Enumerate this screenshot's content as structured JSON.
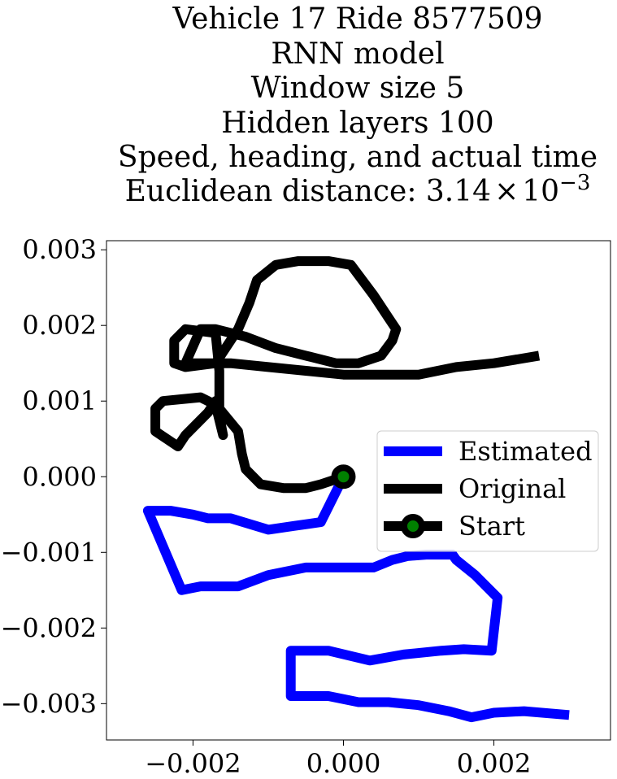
{
  "chart_data": {
    "type": "line",
    "title_lines": [
      "Vehicle 17 Ride 8577509",
      "RNN model",
      "Window size 5",
      "Hidden layers 100",
      "Speed, heading, and actual time"
    ],
    "title_distance": {
      "prefix": "Euclidean distance: 3.14",
      "times": "×",
      "base": "10",
      "exponent": "−3"
    },
    "xlim": [
      -0.00315,
      0.00355
    ],
    "ylim": [
      -0.00348,
      0.00312
    ],
    "x_ticks": [
      {
        "value": -0.002,
        "label": "−0.002"
      },
      {
        "value": 0.0,
        "label": "0.000"
      },
      {
        "value": 0.002,
        "label": "0.002"
      }
    ],
    "y_ticks": [
      {
        "value": 0.003,
        "label": "0.003"
      },
      {
        "value": 0.002,
        "label": "0.002"
      },
      {
        "value": 0.001,
        "label": "0.001"
      },
      {
        "value": 0.0,
        "label": "0.000"
      },
      {
        "value": -0.001,
        "label": "−0.001"
      },
      {
        "value": -0.002,
        "label": "−0.002"
      },
      {
        "value": -0.003,
        "label": "−0.003"
      }
    ],
    "grid": false,
    "legend_position": "center-right",
    "series": [
      {
        "name": "Estimated",
        "color": "#0000ff",
        "x": [
          0.0,
          -0.0003,
          -0.00065,
          -0.001,
          -0.0015,
          -0.0018,
          -0.002,
          -0.0023,
          -0.0026,
          -0.00215,
          -0.0019,
          -0.0014,
          -0.001,
          -0.0005,
          -0.0002,
          0.0004,
          0.00065,
          0.00085,
          0.0011,
          0.00145,
          0.0015,
          0.00175,
          0.00205,
          0.00197,
          0.0016,
          0.0013,
          0.0008,
          0.00035,
          -0.0002,
          -0.0007,
          -0.0007,
          -0.0004,
          -0.0002,
          0.0002,
          0.0006,
          0.001,
          0.0014,
          0.0017,
          0.002,
          0.0024,
          0.003
        ],
        "y": [
          0.0,
          -0.0006,
          -0.00065,
          -0.0007,
          -0.00055,
          -0.00055,
          -0.0005,
          -0.00045,
          -0.00045,
          -0.0015,
          -0.00145,
          -0.00145,
          -0.0013,
          -0.0012,
          -0.0012,
          -0.0012,
          -0.0011,
          -0.00105,
          -0.00103,
          -0.00103,
          -0.0011,
          -0.0013,
          -0.0016,
          -0.0023,
          -0.00228,
          -0.0023,
          -0.00235,
          -0.00243,
          -0.0023,
          -0.0023,
          -0.0029,
          -0.0029,
          -0.0029,
          -0.00298,
          -0.00298,
          -0.00302,
          -0.0031,
          -0.00318,
          -0.00312,
          -0.0031,
          -0.00315
        ]
      },
      {
        "name": "Original",
        "color": "#000000",
        "x": [
          0.0,
          -0.0003,
          -0.0005,
          -0.0008,
          -0.0011,
          -0.0013,
          -0.00135,
          -0.0014,
          -0.00165,
          -0.0017,
          -0.0018,
          -0.0021,
          -0.0022,
          -0.0025,
          -0.0025,
          -0.0024,
          -0.0019,
          -0.0017,
          -0.0016,
          -0.00165,
          -0.00165,
          -0.0017,
          -0.0021,
          -0.00225,
          -0.00225,
          -0.0021,
          -0.0017,
          -0.0014,
          -0.00125,
          -0.00115,
          -0.0009,
          -0.0006,
          -0.0002,
          0.0001,
          0.0004,
          0.0006,
          0.0007,
          0.00065,
          0.0005,
          0.0002,
          -0.0001,
          -0.0005,
          -0.0009,
          -0.0013,
          -0.0017,
          -0.0019,
          -0.0021,
          -0.0015,
          -0.001,
          -0.0005,
          0.0,
          0.0005,
          0.001,
          0.0015,
          0.002,
          0.0023,
          0.0026
        ],
        "y": [
          0.0,
          -0.0001,
          -0.00015,
          -0.00015,
          -0.0001,
          0.0001,
          0.0003,
          0.0006,
          0.0009,
          0.001,
          0.00085,
          0.00055,
          0.0004,
          0.0006,
          0.0009,
          0.001,
          0.00105,
          0.00095,
          0.00055,
          0.0008,
          0.0014,
          0.0019,
          0.00195,
          0.0018,
          0.0015,
          0.00145,
          0.0015,
          0.00195,
          0.0023,
          0.0026,
          0.0028,
          0.00285,
          0.00285,
          0.0028,
          0.0024,
          0.0021,
          0.00195,
          0.0018,
          0.0016,
          0.0015,
          0.0015,
          0.0016,
          0.0017,
          0.00185,
          0.00195,
          0.00195,
          0.0015,
          0.0015,
          0.00145,
          0.0014,
          0.00135,
          0.00135,
          0.00135,
          0.00145,
          0.0015,
          0.00155,
          0.0016
        ]
      },
      {
        "name": "Start",
        "color": "#000000",
        "marker_face_color": "#008000",
        "x": [
          0.0
        ],
        "y": [
          0.0
        ]
      }
    ]
  }
}
